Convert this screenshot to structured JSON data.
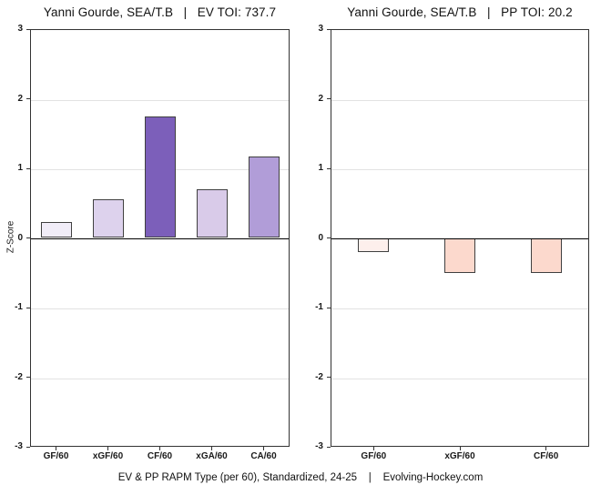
{
  "caption": "EV & PP RAPM Type (per 60), Standardized, 24-25    |    Evolving-Hockey.com",
  "colors": {
    "background": "#ffffff",
    "plot_border": "#333333",
    "gridline": "#e2e2e2",
    "zero_line": "#000000",
    "bar_border": "#404040",
    "text": "#1a1a1a",
    "positive_scale_max": "#7c5fba",
    "negative_scale": "#fcd9cd"
  },
  "chart_data": [
    {
      "type": "bar",
      "title": "Yanni Gourde, SEA/T.B   |   EV TOI: 737.7",
      "categories": [
        "GF/60",
        "xGF/60",
        "CF/60",
        "xGA/60",
        "CA/60"
      ],
      "values": [
        0.23,
        0.55,
        1.74,
        0.7,
        1.17
      ],
      "bar_colors": [
        "#f1edf8",
        "#ddd2ed",
        "#7c5fba",
        "#d9cbe9",
        "#b19dd8"
      ],
      "xlabel": "",
      "ylabel": "Z-Score",
      "ylim": [
        -3,
        3
      ],
      "yticks": [
        3,
        2,
        1,
        0,
        -1,
        -2,
        -3
      ],
      "grid": "horizontal-integers",
      "legend": "none"
    },
    {
      "type": "bar",
      "title": "Yanni Gourde, SEA/T.B   |   PP TOI: 20.2",
      "categories": [
        "GF/60",
        "xGF/60",
        "CF/60"
      ],
      "values": [
        -0.2,
        -0.5,
        -0.5
      ],
      "bar_colors": [
        "#fdefec",
        "#fcd9cd",
        "#fcd9cd"
      ],
      "xlabel": "",
      "ylabel": "",
      "ylim": [
        -3,
        3
      ],
      "yticks": [
        3,
        2,
        1,
        0,
        -1,
        -2,
        -3
      ],
      "grid": "horizontal-integers",
      "legend": "none"
    }
  ]
}
